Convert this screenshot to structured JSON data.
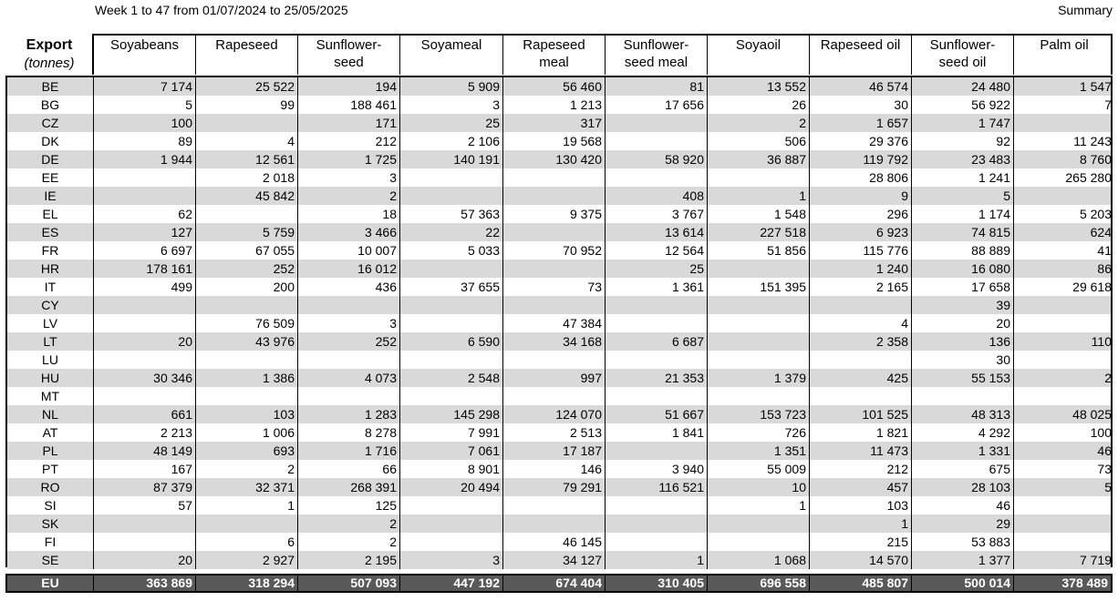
{
  "subtitle": "Week 1 to 47 from 01/07/2024 to 25/05/2025",
  "summary_label": "Summary",
  "header": {
    "export_label": "Export",
    "unit_label": "(tonnes)",
    "columns": [
      [
        "Soyabeans",
        ""
      ],
      [
        "Rapeseed",
        ""
      ],
      [
        "Sunflower-",
        "seed"
      ],
      [
        "Soyameal",
        ""
      ],
      [
        "Rapeseed",
        "meal"
      ],
      [
        "Sunflower-",
        "seed meal"
      ],
      [
        "Soyaoil",
        ""
      ],
      [
        "Rapeseed oil",
        ""
      ],
      [
        "Sunflower-",
        "seed oil"
      ],
      [
        "Palm oil",
        ""
      ]
    ]
  },
  "rows": [
    {
      "country": "BE",
      "values": [
        "7 174",
        "25 522",
        "194",
        "5 909",
        "56 460",
        "81",
        "13 552",
        "46 574",
        "24 480",
        "1 547"
      ]
    },
    {
      "country": "BG",
      "values": [
        "5",
        "99",
        "188 461",
        "3",
        "1 213",
        "17 656",
        "26",
        "30",
        "56 922",
        "7"
      ]
    },
    {
      "country": "CZ",
      "values": [
        "100",
        "",
        "171",
        "25",
        "317",
        "",
        "2",
        "1 657",
        "1 747",
        ""
      ]
    },
    {
      "country": "DK",
      "values": [
        "89",
        "4",
        "212",
        "2 106",
        "19 568",
        "",
        "506",
        "29 376",
        "92",
        "11 243"
      ]
    },
    {
      "country": "DE",
      "values": [
        "1 944",
        "12 561",
        "1 725",
        "140 191",
        "130 420",
        "58 920",
        "36 887",
        "119 792",
        "23 483",
        "8 760"
      ]
    },
    {
      "country": "EE",
      "values": [
        "",
        "2 018",
        "3",
        "",
        "",
        "",
        "",
        "28 806",
        "1 241",
        "265 280"
      ]
    },
    {
      "country": "IE",
      "values": [
        "",
        "45 842",
        "2",
        "",
        "",
        "408",
        "1",
        "9",
        "5",
        ""
      ]
    },
    {
      "country": "EL",
      "values": [
        "62",
        "",
        "18",
        "57 363",
        "9 375",
        "3 767",
        "1 548",
        "296",
        "1 174",
        "5 203"
      ]
    },
    {
      "country": "ES",
      "values": [
        "127",
        "5 759",
        "3 466",
        "22",
        "",
        "13 614",
        "227 518",
        "6 923",
        "74 815",
        "624"
      ]
    },
    {
      "country": "FR",
      "values": [
        "6 697",
        "67 055",
        "10 007",
        "5 033",
        "70 952",
        "12 564",
        "51 856",
        "115 776",
        "88 889",
        "41"
      ]
    },
    {
      "country": "HR",
      "values": [
        "178 161",
        "252",
        "16 012",
        "",
        "",
        "25",
        "",
        "1 240",
        "16 080",
        "86"
      ]
    },
    {
      "country": "IT",
      "values": [
        "499",
        "200",
        "436",
        "37 655",
        "73",
        "1 361",
        "151 395",
        "2 165",
        "17 658",
        "29 618"
      ]
    },
    {
      "country": "CY",
      "values": [
        "",
        "",
        "",
        "",
        "",
        "",
        "",
        "",
        "39",
        ""
      ]
    },
    {
      "country": "LV",
      "values": [
        "",
        "76 509",
        "3",
        "",
        "47 384",
        "",
        "",
        "4",
        "20",
        ""
      ]
    },
    {
      "country": "LT",
      "values": [
        "20",
        "43 976",
        "252",
        "6 590",
        "34 168",
        "6 687",
        "",
        "2 358",
        "136",
        "110"
      ]
    },
    {
      "country": "LU",
      "values": [
        "",
        "",
        "",
        "",
        "",
        "",
        "",
        "",
        "30",
        ""
      ]
    },
    {
      "country": "HU",
      "values": [
        "30 346",
        "1 386",
        "4 073",
        "2 548",
        "997",
        "21 353",
        "1 379",
        "425",
        "55 153",
        "2"
      ]
    },
    {
      "country": "MT",
      "values": [
        "",
        "",
        "",
        "",
        "",
        "",
        "",
        "",
        "",
        ""
      ]
    },
    {
      "country": "NL",
      "values": [
        "661",
        "103",
        "1 283",
        "145 298",
        "124 070",
        "51 667",
        "153 723",
        "101 525",
        "48 313",
        "48 025"
      ]
    },
    {
      "country": "AT",
      "values": [
        "2 213",
        "1 006",
        "8 278",
        "7 991",
        "2 513",
        "1 841",
        "726",
        "1 821",
        "4 292",
        "100"
      ]
    },
    {
      "country": "PL",
      "values": [
        "48 149",
        "693",
        "1 716",
        "7 061",
        "17 187",
        "",
        "1 351",
        "11 473",
        "1 331",
        "46"
      ]
    },
    {
      "country": "PT",
      "values": [
        "167",
        "2",
        "66",
        "8 901",
        "146",
        "3 940",
        "55 009",
        "212",
        "675",
        "73"
      ]
    },
    {
      "country": "RO",
      "values": [
        "87 379",
        "32 371",
        "268 391",
        "20 494",
        "79 291",
        "116 521",
        "10",
        "457",
        "28 103",
        "5"
      ]
    },
    {
      "country": "SI",
      "values": [
        "57",
        "1",
        "125",
        "",
        "",
        "",
        "1",
        "103",
        "46",
        ""
      ]
    },
    {
      "country": "SK",
      "values": [
        "",
        "",
        "2",
        "",
        "",
        "",
        "",
        "1",
        "29",
        ""
      ]
    },
    {
      "country": "FI",
      "values": [
        "",
        "6",
        "2",
        "",
        "46 145",
        "",
        "",
        "215",
        "53 883",
        ""
      ]
    },
    {
      "country": "SE",
      "values": [
        "20",
        "2 927",
        "2 195",
        "3",
        "34 127",
        "1",
        "1 068",
        "14 570",
        "1 377",
        "7 719"
      ]
    }
  ],
  "total": {
    "country": "EU",
    "values": [
      "363 869",
      "318 294",
      "507 093",
      "447 192",
      "674 404",
      "310 405",
      "696 558",
      "485 807",
      "500 014",
      "378 489"
    ]
  }
}
